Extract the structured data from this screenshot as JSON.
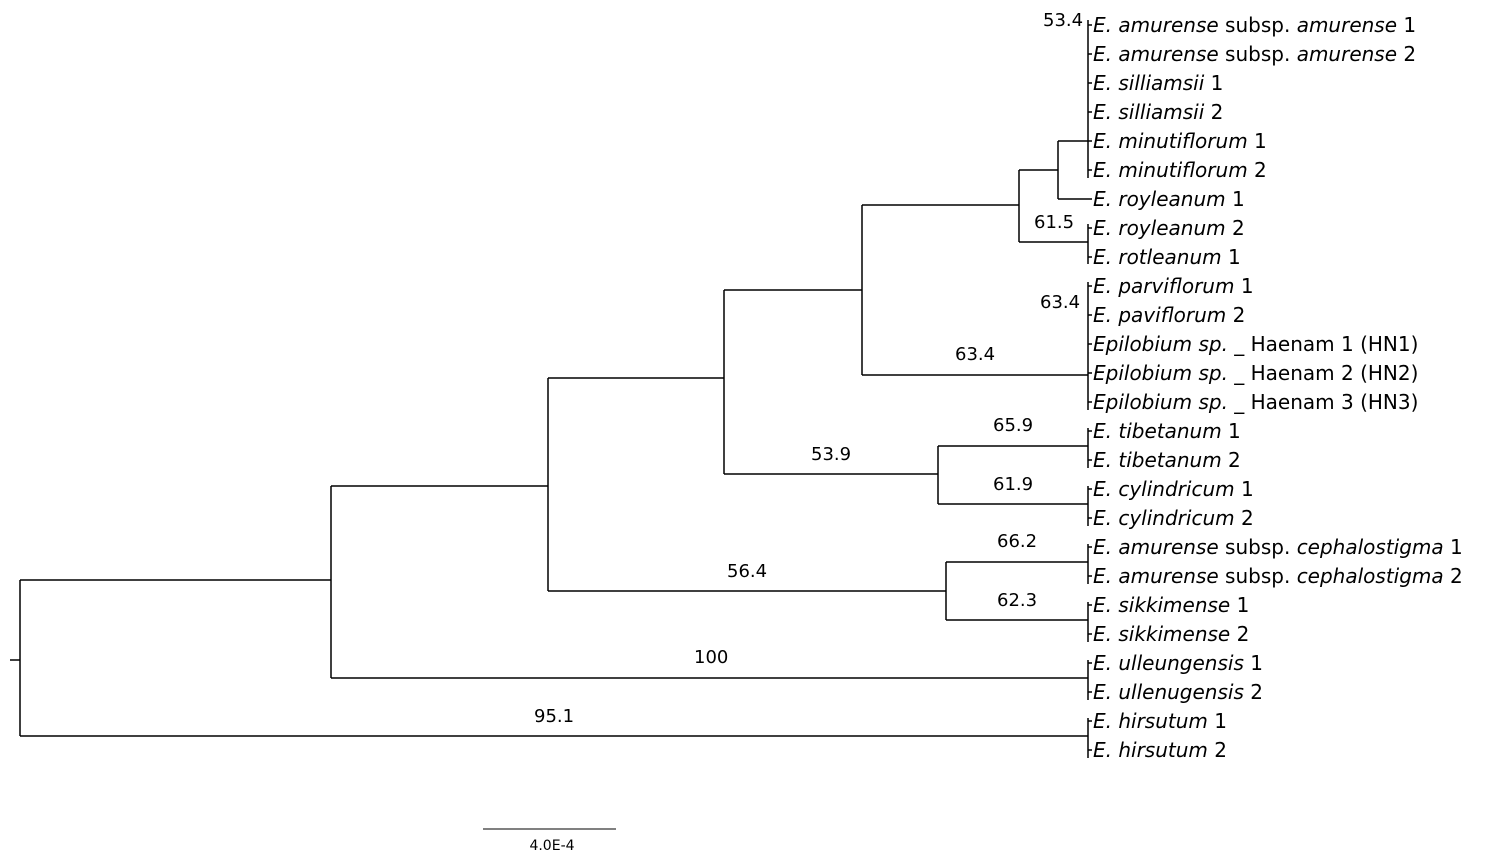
{
  "tree": {
    "tips": [
      {
        "parts": [
          {
            "t": "E. amurense",
            "i": true
          },
          {
            "t": " subsp. "
          },
          {
            "t": "amurense",
            "i": true
          },
          {
            "t": " 1"
          }
        ]
      },
      {
        "parts": [
          {
            "t": "E. amurense",
            "i": true
          },
          {
            "t": " subsp. "
          },
          {
            "t": "amurense",
            "i": true
          },
          {
            "t": " 2"
          }
        ]
      },
      {
        "parts": [
          {
            "t": "E. silliamsii",
            "i": true
          },
          {
            "t": " 1"
          }
        ]
      },
      {
        "parts": [
          {
            "t": "E. silliamsii",
            "i": true
          },
          {
            "t": " 2"
          }
        ]
      },
      {
        "parts": [
          {
            "t": "E. minutiflorum",
            "i": true
          },
          {
            "t": " 1"
          }
        ]
      },
      {
        "parts": [
          {
            "t": "E. minutiflorum",
            "i": true
          },
          {
            "t": " 2"
          }
        ]
      },
      {
        "parts": [
          {
            "t": "E. royleanum",
            "i": true
          },
          {
            "t": " 1"
          }
        ]
      },
      {
        "parts": [
          {
            "t": "E. royleanum",
            "i": true
          },
          {
            "t": " 2"
          }
        ]
      },
      {
        "parts": [
          {
            "t": "E. rotleanum",
            "i": true
          },
          {
            "t": " 1"
          }
        ]
      },
      {
        "parts": [
          {
            "t": "E. parviflorum",
            "i": true
          },
          {
            "t": " 1"
          }
        ]
      },
      {
        "parts": [
          {
            "t": "E. paviflorum",
            "i": true
          },
          {
            "t": " 2"
          }
        ]
      },
      {
        "parts": [
          {
            "t": "Epilobium sp.",
            "i": true
          },
          {
            "t": " _ Haenam 1 (HN1)"
          }
        ]
      },
      {
        "parts": [
          {
            "t": "Epilobium sp.",
            "i": true
          },
          {
            "t": " _ Haenam 2 (HN2)"
          }
        ]
      },
      {
        "parts": [
          {
            "t": "Epilobium sp.",
            "i": true
          },
          {
            "t": " _ Haenam 3 (HN3)"
          }
        ]
      },
      {
        "parts": [
          {
            "t": "E. tibetanum",
            "i": true
          },
          {
            "t": " 1"
          }
        ]
      },
      {
        "parts": [
          {
            "t": "E. tibetanum",
            "i": true
          },
          {
            "t": " 2"
          }
        ]
      },
      {
        "parts": [
          {
            "t": "E. cylindricum",
            "i": true
          },
          {
            "t": " 1"
          }
        ]
      },
      {
        "parts": [
          {
            "t": "E. cylindricum",
            "i": true
          },
          {
            "t": " 2"
          }
        ]
      },
      {
        "parts": [
          {
            "t": "E. amurense",
            "i": true
          },
          {
            "t": " subsp. "
          },
          {
            "t": "cephalostigma",
            "i": true
          },
          {
            "t": " 1"
          }
        ]
      },
      {
        "parts": [
          {
            "t": "E. amurense",
            "i": true
          },
          {
            "t": " subsp. "
          },
          {
            "t": "cephalostigma",
            "i": true
          },
          {
            "t": " 2"
          }
        ]
      },
      {
        "parts": [
          {
            "t": "E. sikkimense",
            "i": true
          },
          {
            "t": " 1"
          }
        ]
      },
      {
        "parts": [
          {
            "t": "E. sikkimense",
            "i": true
          },
          {
            "t": " 2"
          }
        ]
      },
      {
        "parts": [
          {
            "t": "E. ulleungensis",
            "i": true
          },
          {
            "t": " 1"
          }
        ]
      },
      {
        "parts": [
          {
            "t": "E. ullenugensis",
            "i": true
          },
          {
            "t": " 2"
          }
        ]
      },
      {
        "parts": [
          {
            "t": "E. hirsutum",
            "i": true
          },
          {
            "t": " 1"
          }
        ]
      },
      {
        "parts": [
          {
            "t": "E. hirsutum",
            "i": true
          },
          {
            "t": " 2"
          }
        ]
      }
    ],
    "support_values": [
      "53.4",
      "61.5",
      "63.4",
      "63.4",
      "65.9",
      "53.9",
      "61.9",
      "66.2",
      "56.4",
      "62.3",
      "100",
      "95.1"
    ],
    "scale_bar_label": "4.0E-4",
    "colors": {
      "line": "#000000",
      "text": "#000000",
      "background": "#ffffff"
    }
  }
}
